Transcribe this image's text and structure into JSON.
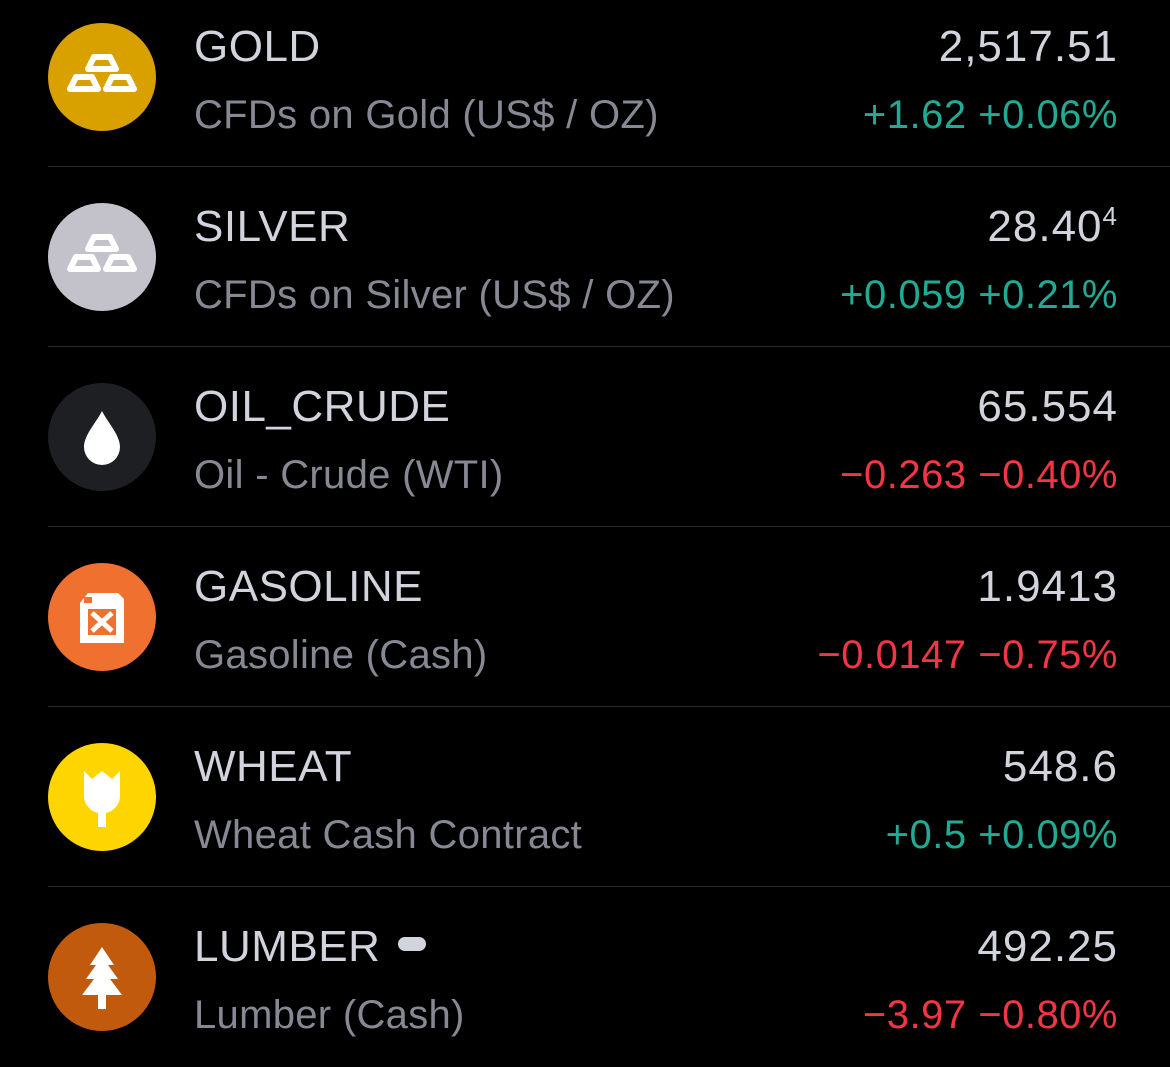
{
  "rows": [
    {
      "symbol": "GOLD",
      "description": "CFDs on Gold (US$ / OZ)",
      "price": "2,517.51",
      "change": "+1.62",
      "change_pct": "+0.06%"
    },
    {
      "symbol": "SILVER",
      "description": "CFDs on Silver (US$ / OZ)",
      "price": "28.40",
      "price_sup": "4",
      "change": "+0.059",
      "change_pct": "+0.21%"
    },
    {
      "symbol": "OIL_CRUDE",
      "description": "Oil - Crude (WTI)",
      "price": "65.554",
      "change": "−0.263",
      "change_pct": "−0.40%"
    },
    {
      "symbol": "GASOLINE",
      "description": "Gasoline (Cash)",
      "price": "1.9413",
      "change": "−0.0147",
      "change_pct": "−0.75%"
    },
    {
      "symbol": "WHEAT",
      "description": "Wheat Cash Contract",
      "price": "548.6",
      "change": "+0.5",
      "change_pct": "+0.09%"
    },
    {
      "symbol": "LUMBER",
      "description": "Lumber (Cash)",
      "price": "492.25",
      "change": "−3.97",
      "change_pct": "−0.80%"
    }
  ]
}
